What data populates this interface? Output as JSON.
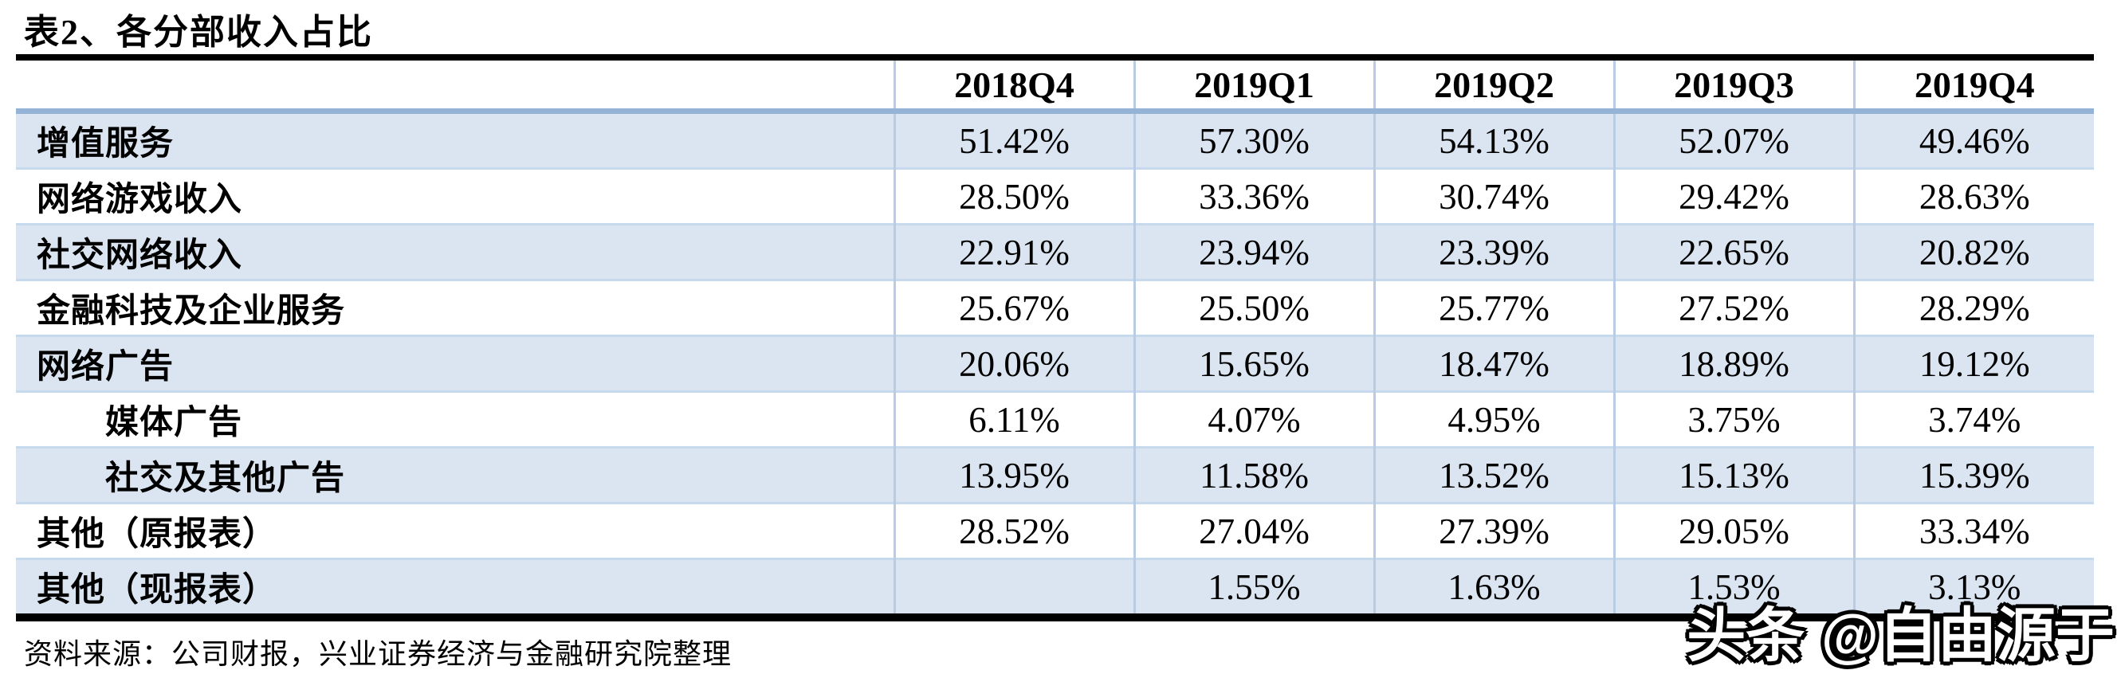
{
  "title": "表2、各分部收入占比",
  "table": {
    "columns": [
      "2018Q4",
      "2019Q1",
      "2019Q2",
      "2019Q3",
      "2019Q4"
    ],
    "rows": [
      {
        "label": "增值服务",
        "values": [
          "51.42%",
          "57.30%",
          "54.13%",
          "52.07%",
          "49.46%"
        ]
      },
      {
        "label": "网络游戏收入",
        "values": [
          "28.50%",
          "33.36%",
          "30.74%",
          "29.42%",
          "28.63%"
        ]
      },
      {
        "label": "社交网络收入",
        "values": [
          "22.91%",
          "23.94%",
          "23.39%",
          "22.65%",
          "20.82%"
        ]
      },
      {
        "label": "金融科技及企业服务",
        "values": [
          "25.67%",
          "25.50%",
          "25.77%",
          "27.52%",
          "28.29%"
        ]
      },
      {
        "label": "网络广告",
        "values": [
          "20.06%",
          "15.65%",
          "18.47%",
          "18.89%",
          "19.12%"
        ]
      },
      {
        "label": "媒体广告",
        "values": [
          "6.11%",
          "4.07%",
          "4.95%",
          "3.75%",
          "3.74%"
        ]
      },
      {
        "label": "社交及其他广告",
        "values": [
          "13.95%",
          "11.58%",
          "13.52%",
          "15.13%",
          "15.39%"
        ]
      },
      {
        "label": "其他（原报表）",
        "values": [
          "28.52%",
          "27.04%",
          "27.39%",
          "29.05%",
          "33.34%"
        ]
      },
      {
        "label": "其他（现报表）",
        "values": [
          "",
          "1.55%",
          "1.63%",
          "1.53%",
          "3.13%"
        ]
      }
    ]
  },
  "source": "资料来源：公司财报，兴业证券经济与金融研究院整理",
  "watermark": "头条 @自由源于",
  "colors": {
    "row_fill_blue": "#dbe5f1",
    "row_separator": "#c7d9ed",
    "column_separator": "#b9cce4",
    "header_underline": "#95b3d7",
    "rule_black": "#000000"
  }
}
